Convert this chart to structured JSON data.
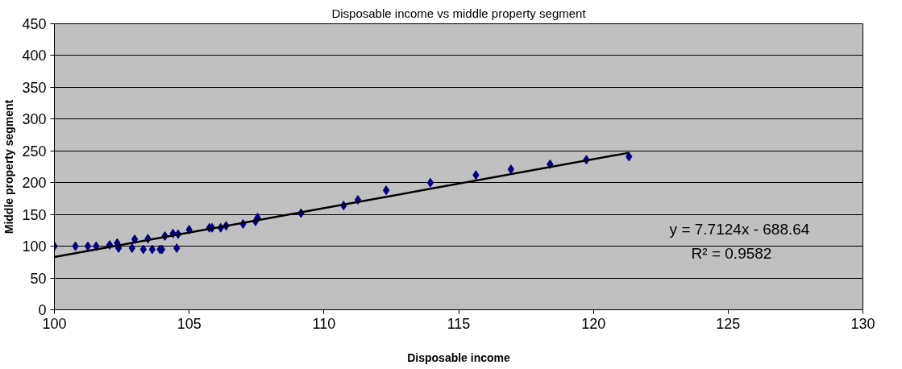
{
  "chart_data": {
    "type": "scatter",
    "title": "Disposable income vs middle property segment",
    "xlabel": "Disposable income",
    "ylabel": "Middle property segment",
    "xlim": [
      100,
      130
    ],
    "xticks": [
      100,
      105,
      110,
      115,
      120,
      125,
      130
    ],
    "ylim": [
      0,
      450
    ],
    "yticks": [
      0,
      50,
      100,
      150,
      200,
      250,
      300,
      350,
      400,
      450
    ],
    "grid": "y",
    "series": [
      {
        "marker": "diamond",
        "color": "#000080",
        "x": [
          100,
          100.78,
          101.24,
          101.55,
          102.05,
          102.33,
          102.38,
          102.88,
          102.98,
          103.3,
          103.47,
          103.63,
          103.92,
          103.99,
          104.1,
          104.4,
          104.54,
          104.59,
          105,
          105.75,
          105.85,
          106.17,
          106.37,
          107,
          107.46,
          107.54,
          109.15,
          110.73,
          111.26,
          112.31,
          113.95,
          115.64,
          116.94,
          118.39,
          119.74,
          121.32
        ],
        "values": [
          100,
          100,
          100,
          100,
          102,
          105,
          97,
          97,
          111,
          95,
          112,
          95,
          95,
          95,
          116,
          120,
          97,
          119,
          126,
          129,
          129,
          129,
          132,
          135,
          139,
          145,
          152,
          164,
          173,
          188,
          200,
          212,
          221,
          229,
          236,
          241
        ]
      },
      {
        "type": "line",
        "color": "#000000",
        "x": [
          100,
          121.32
        ],
        "values": [
          83,
          247
        ]
      }
    ],
    "annotations": [
      "y = 7.7124x - 688.64",
      "R² = 0.9582"
    ]
  }
}
